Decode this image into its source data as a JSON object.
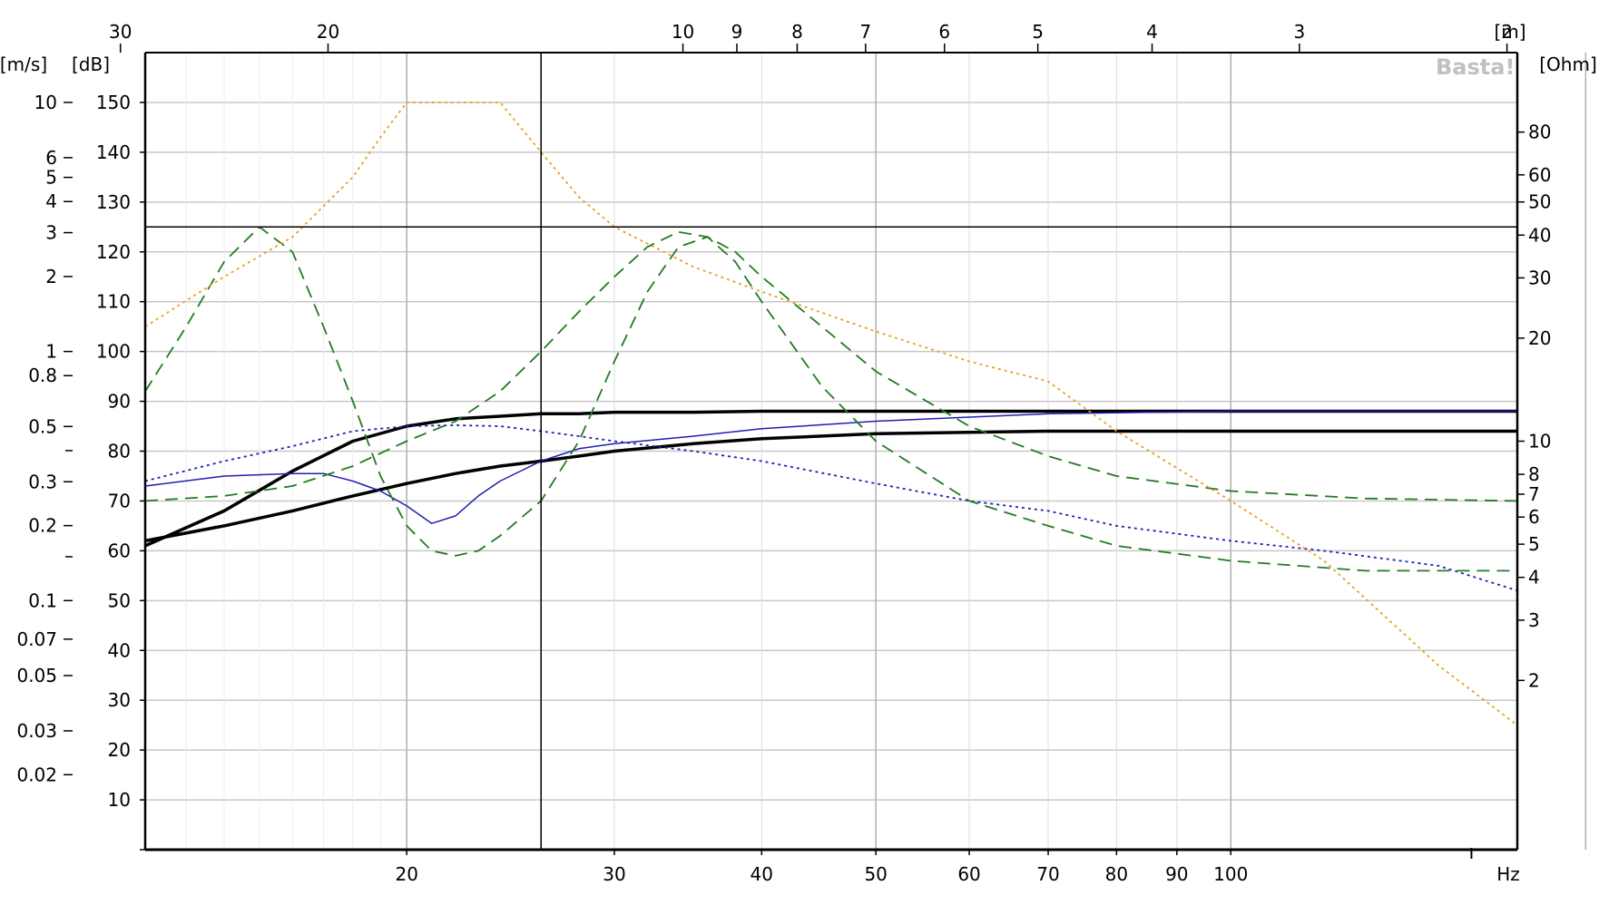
{
  "chart_data": {
    "type": "line",
    "watermark": "Basta!",
    "x_axis": {
      "scale": "log",
      "range": [
        12,
        175
      ],
      "ticks": [
        20,
        30,
        40,
        50,
        60,
        70,
        80,
        90,
        100
      ],
      "unit_label": "Hz",
      "gridlines": [
        20,
        30,
        40,
        50,
        60,
        70,
        80,
        90,
        100,
        200
      ]
    },
    "top_axis": {
      "unit_label": "[m]",
      "ticks": [
        30,
        20,
        10,
        9,
        8,
        7,
        6,
        5,
        4,
        3,
        2
      ],
      "tick_labels": [
        "30",
        "20",
        "10",
        "9",
        "8",
        "7",
        "6",
        "5",
        "4",
        "3",
        "2"
      ]
    },
    "y_axis_db": {
      "unit_label": "[dB]",
      "range": [
        0,
        160
      ],
      "ticks": [
        10,
        20,
        30,
        40,
        50,
        60,
        70,
        80,
        90,
        100,
        110,
        120,
        130,
        140,
        150
      ],
      "tick_labels": [
        "10",
        "20",
        "30",
        "40",
        "50",
        "60",
        "70",
        "80",
        "90",
        "100",
        "110",
        "120",
        "130",
        "140",
        "150"
      ]
    },
    "y_axis_velocity": {
      "unit_label": "[m/s]",
      "scale": "log",
      "ticks": [
        10,
        6,
        5,
        4,
        3,
        2,
        1,
        0.8,
        0.5,
        0.3,
        0.2,
        0.1,
        0.07,
        0.05,
        0.03,
        0.02
      ],
      "tick_labels": [
        "10",
        "6",
        "5",
        "4",
        "3",
        "2",
        "1",
        "0.8",
        "0.5",
        "0.3",
        "0.2",
        "0.1",
        "0.07",
        "0.05",
        "0.03",
        "0.02"
      ]
    },
    "y_axis_impedance": {
      "unit_label": "[Ohm]",
      "scale": "log",
      "ticks": [
        80,
        60,
        50,
        40,
        30,
        20,
        10,
        8,
        7,
        6,
        5,
        4,
        3,
        2
      ],
      "tick_labels": [
        "80",
        "60",
        "50",
        "40",
        "30",
        "20",
        "10",
        "8",
        "7",
        "6",
        "5",
        "4",
        "3",
        "2"
      ]
    },
    "cursor": {
      "x": 26,
      "y": 125
    },
    "series": [
      {
        "color": "#000000",
        "style": "solid-thick",
        "points": [
          [
            12,
            61
          ],
          [
            14,
            68
          ],
          [
            16,
            76
          ],
          [
            18,
            82
          ],
          [
            20,
            85
          ],
          [
            22,
            86.5
          ],
          [
            24,
            87
          ],
          [
            26,
            87.5
          ],
          [
            28,
            87.5
          ],
          [
            30,
            87.8
          ],
          [
            35,
            87.8
          ],
          [
            40,
            88
          ],
          [
            50,
            88
          ],
          [
            70,
            88
          ],
          [
            100,
            88
          ],
          [
            160,
            88
          ],
          [
            175,
            88
          ]
        ]
      },
      {
        "color": "#000000",
        "style": "solid-thick",
        "points": [
          [
            12,
            62
          ],
          [
            14,
            65
          ],
          [
            16,
            68
          ],
          [
            18,
            71
          ],
          [
            20,
            73.5
          ],
          [
            22,
            75.5
          ],
          [
            24,
            77
          ],
          [
            26,
            78
          ],
          [
            28,
            79
          ],
          [
            30,
            80
          ],
          [
            35,
            81.5
          ],
          [
            40,
            82.5
          ],
          [
            50,
            83.5
          ],
          [
            70,
            84
          ],
          [
            100,
            84
          ],
          [
            175,
            84
          ]
        ]
      },
      {
        "color": "#1f1fb4",
        "style": "solid",
        "points": [
          [
            12,
            73
          ],
          [
            14,
            75
          ],
          [
            16,
            75.5
          ],
          [
            17,
            75.5
          ],
          [
            18,
            74
          ],
          [
            19,
            72
          ],
          [
            20,
            69
          ],
          [
            21,
            65.5
          ],
          [
            22,
            67
          ],
          [
            23,
            71
          ],
          [
            24,
            74
          ],
          [
            26,
            78
          ],
          [
            28,
            80.5
          ],
          [
            30,
            81.5
          ],
          [
            35,
            83
          ],
          [
            40,
            84.5
          ],
          [
            50,
            86
          ],
          [
            70,
            87.5
          ],
          [
            100,
            88
          ],
          [
            175,
            88
          ]
        ]
      },
      {
        "color": "#1f1fb4",
        "style": "dotted",
        "points": [
          [
            12,
            74
          ],
          [
            14,
            78
          ],
          [
            16,
            81
          ],
          [
            18,
            84
          ],
          [
            20,
            85
          ],
          [
            22,
            85.2
          ],
          [
            24,
            85
          ],
          [
            26,
            84
          ],
          [
            28,
            83
          ],
          [
            30,
            82
          ],
          [
            35,
            80
          ],
          [
            40,
            78
          ],
          [
            50,
            73.5
          ],
          [
            60,
            70
          ],
          [
            70,
            68
          ],
          [
            80,
            65
          ],
          [
            100,
            62
          ],
          [
            120,
            60
          ],
          [
            150,
            57
          ],
          [
            175,
            52
          ]
        ]
      },
      {
        "color": "#237a23",
        "style": "dashed-long",
        "points": [
          [
            12,
            92
          ],
          [
            13,
            105
          ],
          [
            14,
            118
          ],
          [
            15,
            125
          ],
          [
            16,
            120
          ],
          [
            17,
            105
          ],
          [
            18,
            90
          ],
          [
            19,
            75
          ],
          [
            20,
            65
          ],
          [
            21,
            60
          ],
          [
            22,
            59
          ],
          [
            23,
            60
          ],
          [
            24,
            63
          ],
          [
            26,
            70
          ],
          [
            28,
            82
          ],
          [
            30,
            98
          ],
          [
            32,
            112
          ],
          [
            34,
            121
          ],
          [
            36,
            123
          ],
          [
            38,
            118
          ],
          [
            40,
            110
          ],
          [
            45,
            93
          ],
          [
            50,
            82
          ],
          [
            60,
            70
          ],
          [
            70,
            65
          ],
          [
            80,
            61
          ],
          [
            100,
            58
          ],
          [
            130,
            56
          ],
          [
            175,
            56
          ]
        ]
      },
      {
        "color": "#237a23",
        "style": "dashed-long",
        "points": [
          [
            12,
            70
          ],
          [
            14,
            71
          ],
          [
            16,
            73
          ],
          [
            18,
            77
          ],
          [
            20,
            82
          ],
          [
            22,
            86
          ],
          [
            24,
            92
          ],
          [
            26,
            100
          ],
          [
            28,
            108
          ],
          [
            30,
            115
          ],
          [
            32,
            121
          ],
          [
            34,
            124
          ],
          [
            36,
            123
          ],
          [
            38,
            120
          ],
          [
            40,
            115
          ],
          [
            45,
            105
          ],
          [
            50,
            96
          ],
          [
            60,
            85
          ],
          [
            70,
            79
          ],
          [
            80,
            75
          ],
          [
            100,
            72
          ],
          [
            130,
            70.5
          ],
          [
            175,
            70
          ]
        ]
      },
      {
        "color": "#e8a020",
        "style": "dotted",
        "points": [
          [
            12,
            105
          ],
          [
            14,
            115
          ],
          [
            16,
            123
          ],
          [
            18,
            135
          ],
          [
            19,
            143
          ],
          [
            20,
            150
          ],
          [
            22,
            150
          ],
          [
            24,
            150
          ],
          [
            26,
            140
          ],
          [
            28,
            131
          ],
          [
            30,
            125
          ],
          [
            35,
            117
          ],
          [
            40,
            112
          ],
          [
            50,
            104
          ],
          [
            60,
            98
          ],
          [
            70,
            94
          ],
          [
            80,
            84
          ],
          [
            100,
            70
          ],
          [
            120,
            58
          ],
          [
            150,
            37
          ],
          [
            175,
            25
          ]
        ]
      }
    ]
  }
}
